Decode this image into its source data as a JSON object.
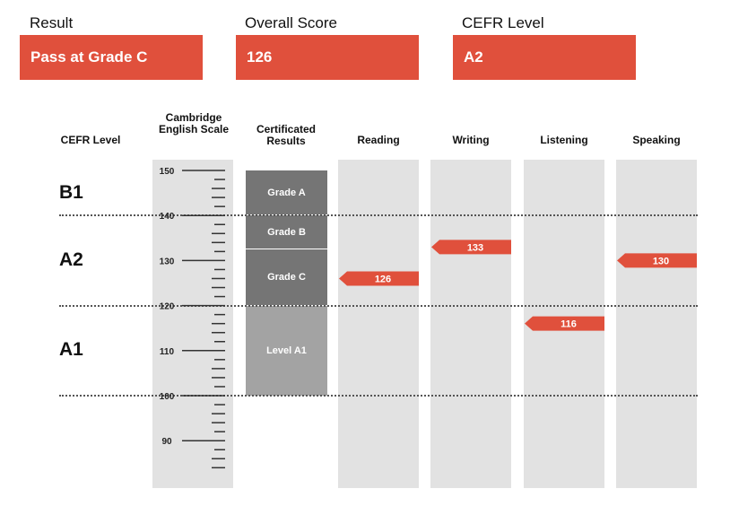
{
  "summary": {
    "result_label": "Result",
    "result_value": "Pass at Grade C",
    "score_label": "Overall Score",
    "score_value": "126",
    "cefr_label": "CEFR Level",
    "cefr_value": "A2"
  },
  "colors": {
    "accent": "#e0503c",
    "column_bg": "#e2e2e2",
    "grade_dark": "#757575",
    "grade_light": "#a3a3a3"
  },
  "chart_data": {
    "type": "bar",
    "headers": {
      "cefr_level": "CEFR Level",
      "scale": "Cambridge English Scale",
      "certificated": "Certificated Results"
    },
    "scale_ticks": [
      "150",
      "140",
      "130",
      "120",
      "110",
      "100",
      "90"
    ],
    "ylim": [
      82,
      152
    ],
    "cefr_levels": [
      {
        "label": "B1",
        "from": 140,
        "to": 150
      },
      {
        "label": "A2",
        "from": 120,
        "to": 140
      },
      {
        "label": "A1",
        "from": 100,
        "to": 120
      }
    ],
    "grades": [
      {
        "label": "Grade A",
        "from": 140,
        "to": 150
      },
      {
        "label": "Grade B",
        "from": 133,
        "to": 140
      },
      {
        "label": "Grade C",
        "from": 120,
        "to": 133
      },
      {
        "label": "Level A1",
        "from": 100,
        "to": 120
      }
    ],
    "categories": [
      "Reading",
      "Writing",
      "Listening",
      "Speaking"
    ],
    "values": [
      126,
      133,
      116,
      130
    ],
    "value_labels": [
      "126",
      "133",
      "116",
      "130"
    ]
  }
}
